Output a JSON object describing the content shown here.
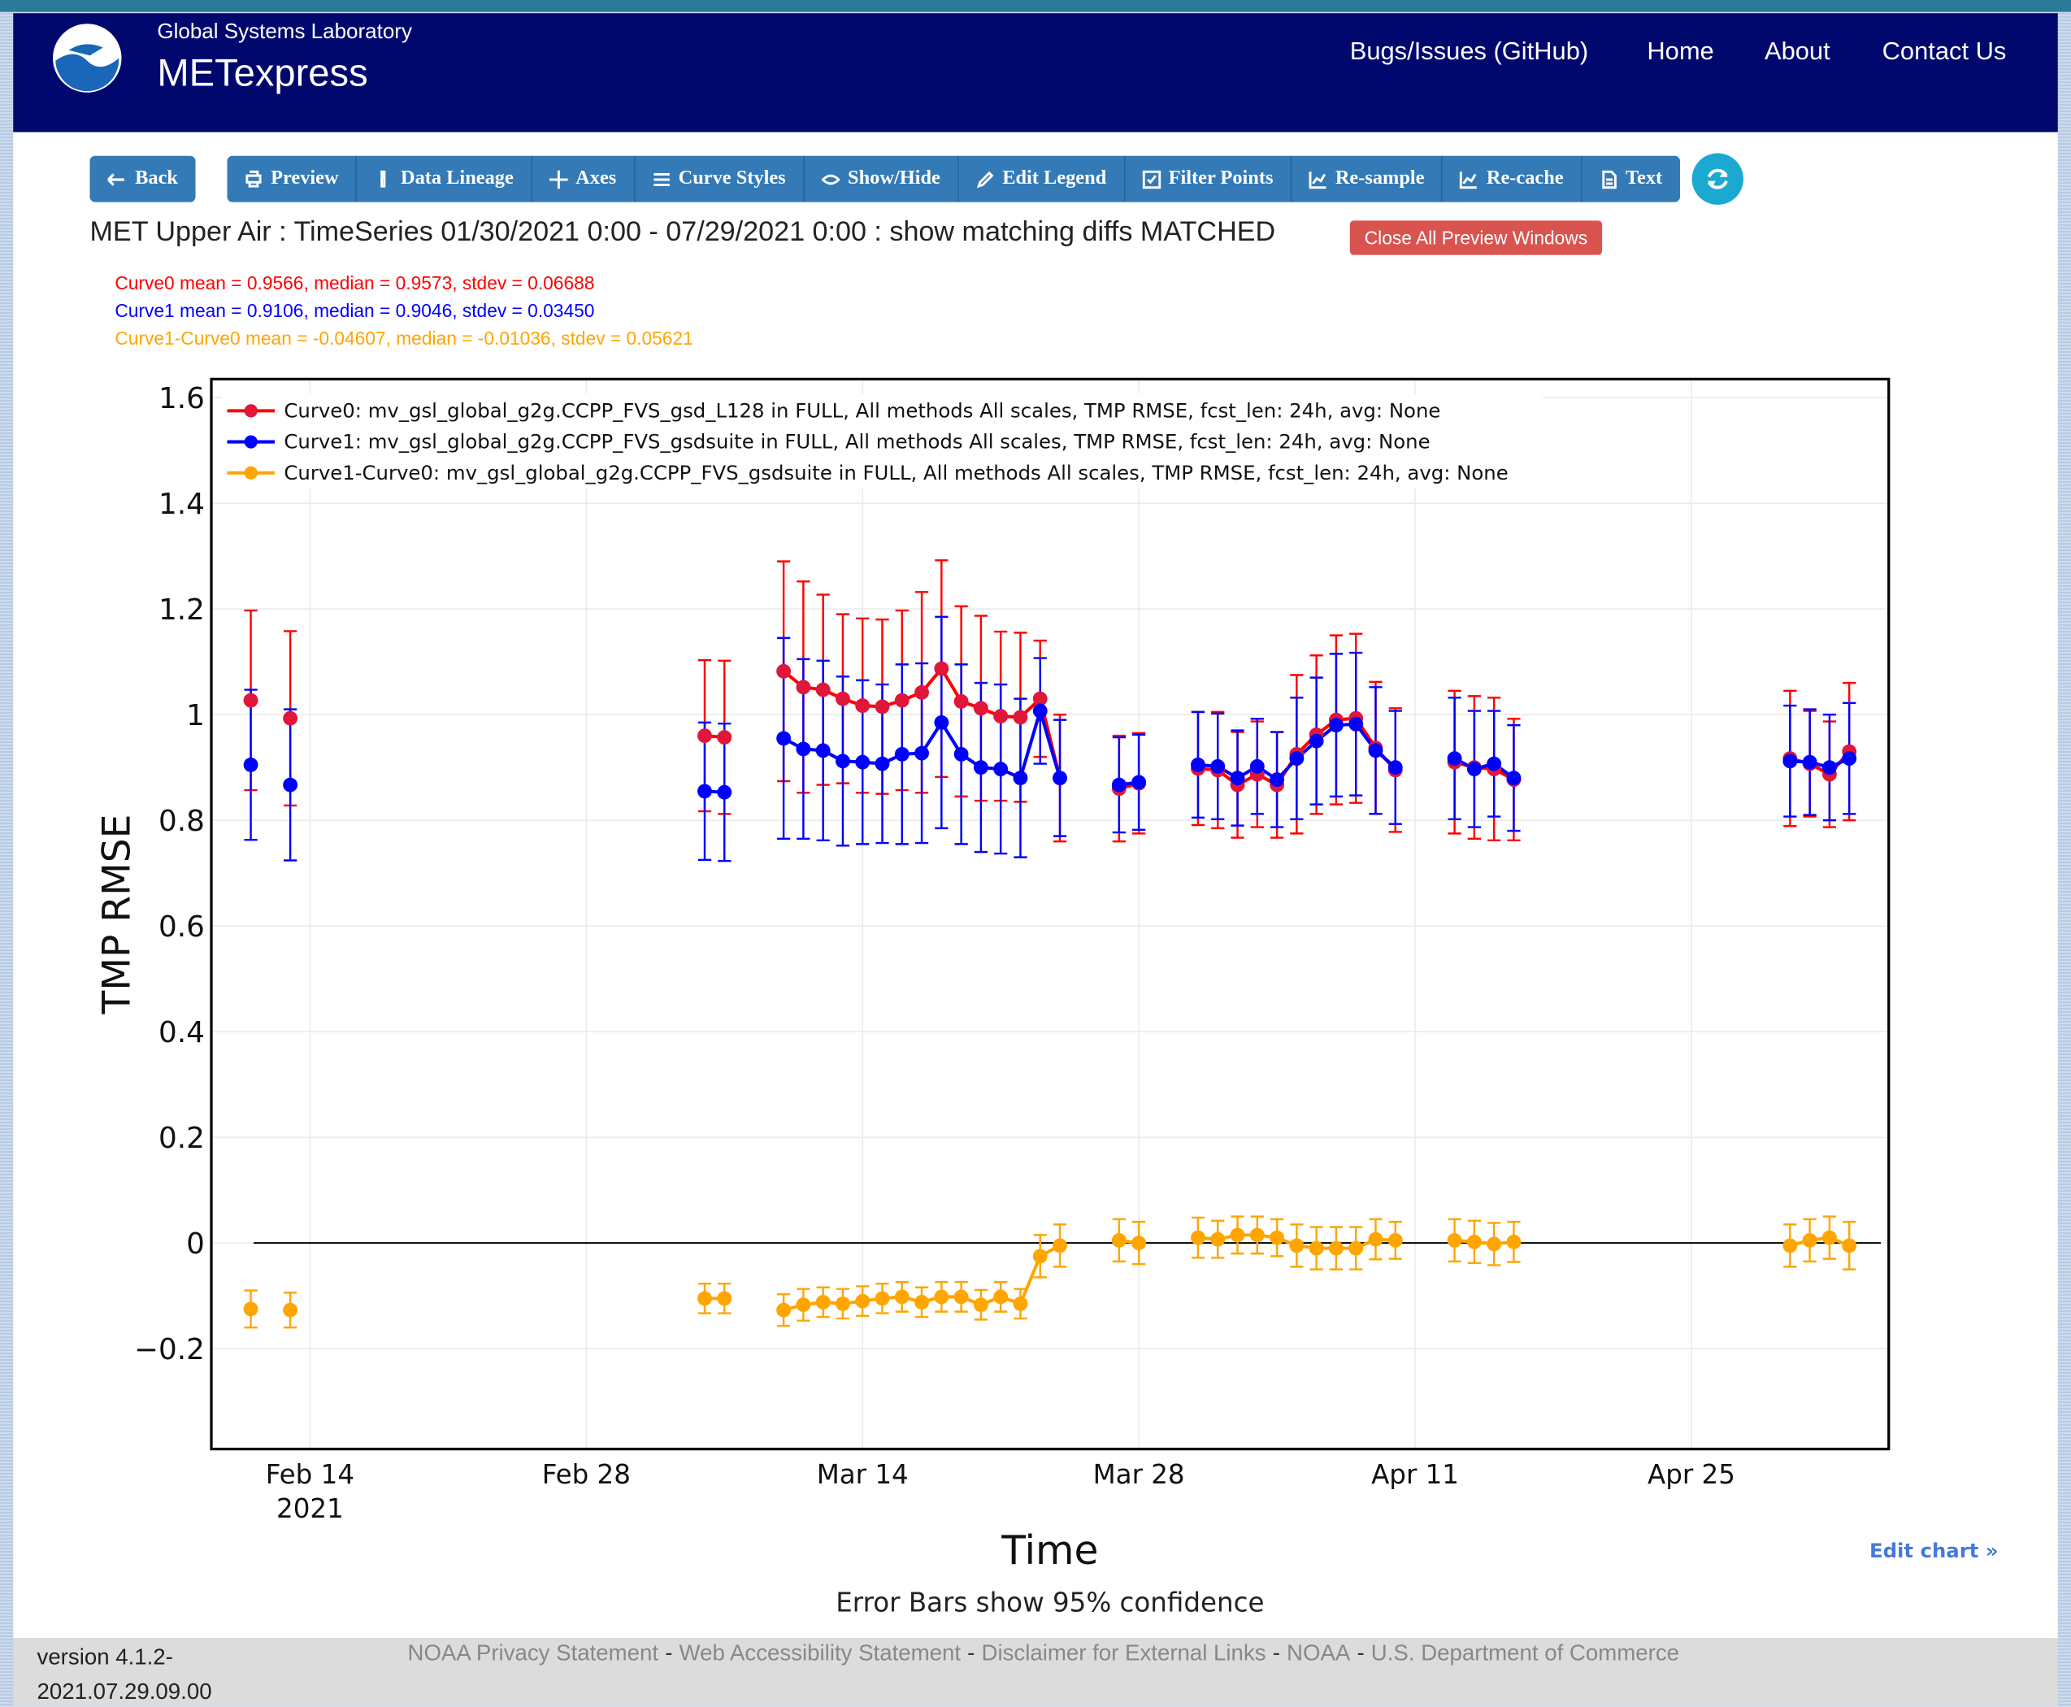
{
  "header": {
    "lab": "Global Systems Laboratory",
    "app": "METexpress",
    "nav": [
      "Bugs/Issues (GitHub)",
      "Home",
      "About",
      "Contact Us"
    ]
  },
  "toolbar": {
    "back": "Back",
    "buttons": [
      "Preview",
      "Data Lineage",
      "Axes",
      "Curve Styles",
      "Show/Hide",
      "Edit Legend",
      "Filter Points",
      "Re-sample",
      "Re-cache",
      "Text"
    ]
  },
  "plot_title": "MET Upper Air : TimeSeries 01/30/2021 0:00 - 07/29/2021 0:00 : show matching diffs MATCHED",
  "close_button": "Close All Preview Windows",
  "stats": [
    {
      "text": "Curve0 mean = 0.9566, median = 0.9573, stdev = 0.06688",
      "color": "#ff0000"
    },
    {
      "text": "Curve1 mean = 0.9106, median = 0.9046, stdev = 0.03450",
      "color": "#0000ff"
    },
    {
      "text": "Curve1-Curve0 mean = -0.04607, median = -0.01036, stdev = 0.05621",
      "color": "#ffa500"
    }
  ],
  "chart_data": {
    "type": "line",
    "xlabel": "Time",
    "ylabel": "TMP RMSE",
    "note": "Error Bars show 95% confidence",
    "edit_link": "Edit chart »",
    "x": [
      "2021-02-11",
      "2021-02-12",
      "2021-02-13",
      "2021-02-14",
      "2021-03-06",
      "2021-03-07",
      "2021-03-08",
      "2021-03-10",
      "2021-03-11",
      "2021-03-12",
      "2021-03-13",
      "2021-03-14",
      "2021-03-15",
      "2021-03-16",
      "2021-03-17",
      "2021-03-18",
      "2021-03-19",
      "2021-03-20",
      "2021-03-21",
      "2021-03-22",
      "2021-03-23",
      "2021-03-24",
      "2021-03-25",
      "2021-03-27",
      "2021-03-28",
      "2021-03-29",
      "2021-03-31",
      "2021-04-01",
      "2021-04-02",
      "2021-04-03",
      "2021-04-04",
      "2021-04-05",
      "2021-04-06",
      "2021-04-07",
      "2021-04-08",
      "2021-04-09",
      "2021-04-10",
      "2021-04-11",
      "2021-04-13",
      "2021-04-14",
      "2021-04-15",
      "2021-04-16",
      "2021-04-17",
      "2021-04-30",
      "2021-05-01",
      "2021-05-02",
      "2021-05-03"
    ],
    "series": [
      {
        "name": "Curve0: mv_gsl_global_g2g.CCPP_FVS_gsd_L128 in FULL, All methods All scales, TMP RMSE, fcst_len: 24h, avg: None",
        "color": "#ff0000",
        "marker_color": "#e0163a",
        "values": [
          1.027,
          null,
          0.993,
          null,
          0.96,
          0.957,
          null,
          1.082,
          1.052,
          1.047,
          1.03,
          1.017,
          1.015,
          1.027,
          1.042,
          1.087,
          1.025,
          1.012,
          0.997,
          0.995,
          1.03,
          0.88,
          null,
          0.86,
          0.87,
          null,
          0.898,
          0.895,
          0.867,
          0.887,
          0.867,
          0.925,
          0.962,
          0.99,
          0.993,
          0.937,
          0.895,
          null,
          0.91,
          0.9,
          0.897,
          0.877,
          null,
          0.917,
          0.907,
          0.887,
          0.93
        ],
        "errors": [
          0.17,
          null,
          0.165,
          null,
          0.143,
          0.145,
          null,
          0.208,
          0.2,
          0.18,
          0.16,
          0.165,
          0.165,
          0.17,
          0.19,
          0.205,
          0.18,
          0.175,
          0.16,
          0.16,
          0.11,
          0.12,
          null,
          0.1,
          0.095,
          null,
          0.107,
          0.11,
          0.1,
          0.1,
          0.1,
          0.15,
          0.15,
          0.16,
          0.16,
          0.125,
          0.117,
          null,
          0.135,
          0.135,
          0.135,
          0.115,
          null,
          0.128,
          0.1,
          0.1,
          0.13
        ]
      },
      {
        "name": "Curve1: mv_gsl_global_g2g.CCPP_FVS_gsdsuite in FULL, All methods All scales, TMP RMSE, fcst_len: 24h, avg: None",
        "color": "#0000ff",
        "marker_color": "#0000ff",
        "values": [
          0.905,
          null,
          0.867,
          null,
          0.855,
          0.853,
          null,
          0.955,
          0.935,
          0.932,
          0.912,
          0.91,
          0.907,
          0.925,
          0.927,
          0.985,
          0.925,
          0.9,
          0.897,
          0.88,
          1.007,
          0.88,
          null,
          0.867,
          0.872,
          null,
          0.905,
          0.902,
          0.88,
          0.902,
          0.877,
          0.917,
          0.95,
          0.98,
          0.982,
          0.932,
          0.9,
          null,
          0.917,
          0.897,
          0.907,
          0.88,
          null,
          0.912,
          0.91,
          0.9,
          0.917
        ],
        "errors": [
          0.142,
          null,
          0.143,
          null,
          0.13,
          0.13,
          null,
          0.19,
          0.17,
          0.17,
          0.16,
          0.155,
          0.15,
          0.17,
          0.17,
          0.2,
          0.17,
          0.16,
          0.16,
          0.15,
          0.1,
          0.11,
          null,
          0.09,
          0.09,
          null,
          0.1,
          0.1,
          0.09,
          0.09,
          0.09,
          0.115,
          0.12,
          0.135,
          0.135,
          0.12,
          0.107,
          null,
          0.115,
          0.11,
          0.1,
          0.1,
          null,
          0.105,
          0.1,
          0.1,
          0.105
        ]
      },
      {
        "name": "Curve1-Curve0: mv_gsl_global_g2g.CCPP_FVS_gsdsuite in FULL, All methods All scales, TMP RMSE, fcst_len: 24h, avg: None",
        "color": "#ffa500",
        "marker_color": "#ffa500",
        "values": [
          -0.125,
          null,
          -0.127,
          null,
          -0.105,
          -0.105,
          null,
          -0.127,
          -0.117,
          -0.112,
          -0.115,
          -0.11,
          -0.105,
          -0.102,
          -0.112,
          -0.102,
          -0.102,
          -0.117,
          -0.102,
          -0.115,
          -0.025,
          -0.005,
          null,
          0.005,
          0.0,
          null,
          0.01,
          0.007,
          0.015,
          0.015,
          0.01,
          -0.005,
          -0.01,
          -0.01,
          -0.01,
          0.007,
          0.005,
          null,
          0.005,
          0.002,
          -0.002,
          0.002,
          null,
          -0.005,
          0.005,
          0.01,
          -0.005
        ],
        "errors": [
          0.035,
          null,
          0.033,
          null,
          0.028,
          0.028,
          null,
          0.03,
          0.03,
          0.028,
          0.028,
          0.028,
          0.028,
          0.028,
          0.028,
          0.028,
          0.028,
          0.028,
          0.028,
          0.028,
          0.04,
          0.04,
          null,
          0.04,
          0.04,
          null,
          0.038,
          0.035,
          0.035,
          0.035,
          0.035,
          0.04,
          0.04,
          0.04,
          0.04,
          0.038,
          0.035,
          null,
          0.04,
          0.04,
          0.04,
          0.038,
          null,
          0.04,
          0.04,
          0.04,
          0.045
        ]
      }
    ],
    "xlim": [
      "2021-02-09",
      "2021-05-05"
    ],
    "xticks": [
      {
        "value": "2021-02-14",
        "label": "Feb 14\n2021"
      },
      {
        "value": "2021-02-28",
        "label": "Feb 28"
      },
      {
        "value": "2021-03-14",
        "label": "Mar 14"
      },
      {
        "value": "2021-03-28",
        "label": "Mar 28"
      },
      {
        "value": "2021-04-11",
        "label": "Apr 11"
      },
      {
        "value": "2021-04-25",
        "label": "Apr 25"
      }
    ],
    "ylim": [
      -0.39,
      1.635
    ],
    "yticks": [
      {
        "value": -0.2,
        "label": "−0.2"
      },
      0,
      0.2,
      0.4,
      0.6,
      0.8,
      1,
      1.2,
      1.4,
      1.6
    ],
    "grid": true,
    "zeroline": true,
    "legend": "top-left"
  },
  "footer": {
    "version": "version 4.1.2-2021.07.29.09.00",
    "separator": "-",
    "links": [
      "NOAA Privacy Statement",
      "Web Accessibility Statement",
      "Disclaimer for External Links",
      "NOAA",
      "U.S. Department of Commerce"
    ]
  }
}
